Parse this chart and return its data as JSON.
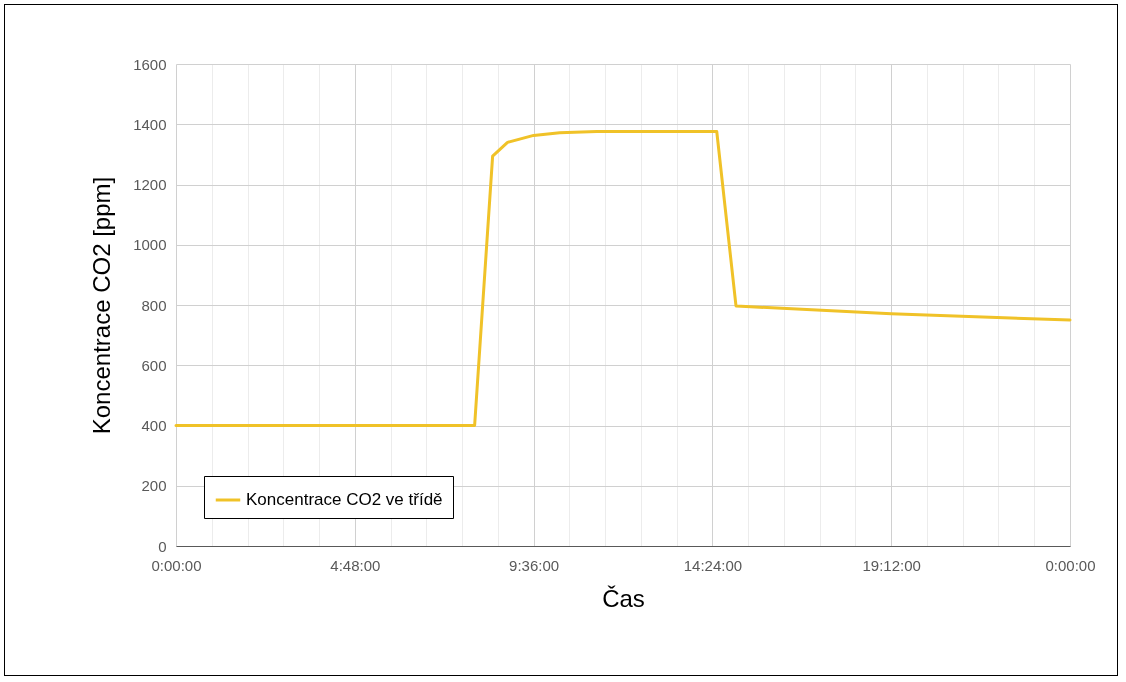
{
  "chart_data": {
    "type": "line",
    "xlabel": "Čas",
    "ylabel": "Koncentrace CO2 [ppm]",
    "x": [
      "--01-01T00:00",
      "--01-01T08:01",
      "--01-01T08:30",
      "--01-01T08:54",
      "--01-01T09:36",
      "--01-01T10:18",
      "--01-01T11:18",
      "--01-01T12:30",
      "--01-01T14:31",
      "--01-01T15:02",
      "--01-01T15:18",
      "--01-01T19:12",
      "--01-02T00:00"
    ],
    "series": [
      {
        "name": "Koncentrace CO2 ve třídě",
        "color": "#f0c228",
        "values": [
          400,
          400,
          1294,
          1340,
          1363,
          1372,
          1376,
          1376,
          1376,
          797,
          795,
          771,
          750
        ]
      }
    ],
    "xlim": [
      "--01-01T00:00",
      "--01-02T00:00"
    ],
    "xticks": [
      {
        "value": "--01-01T00:00:00",
        "label": "0:00:00"
      },
      {
        "value": "--01-01T00:57:36",
        "label": null
      },
      {
        "value": "--01-01T01:55:12",
        "label": null
      },
      {
        "value": "--01-01T02:52:48",
        "label": null
      },
      {
        "value": "--01-01T03:50:24",
        "label": null
      },
      {
        "value": "--01-01T04:48:00",
        "label": "4:48:00"
      },
      {
        "value": "--01-01T05:45:36",
        "label": null
      },
      {
        "value": "--01-01T06:43:12",
        "label": null
      },
      {
        "value": "--01-01T07:40:48",
        "label": null
      },
      {
        "value": "--01-01T08:38:24",
        "label": null
      },
      {
        "value": "--01-01T09:36:00",
        "label": "9:36:00"
      },
      {
        "value": "--01-01T10:33:36",
        "label": null
      },
      {
        "value": "--01-01T11:31:12",
        "label": null
      },
      {
        "value": "--01-01T12:28:48",
        "label": null
      },
      {
        "value": "--01-01T13:26:24",
        "label": null
      },
      {
        "value": "--01-01T14:24:00",
        "label": "14:24:00"
      },
      {
        "value": "--01-01T15:21:36",
        "label": null
      },
      {
        "value": "--01-01T16:19:12",
        "label": null
      },
      {
        "value": "--01-01T17:16:48",
        "label": null
      },
      {
        "value": "--01-01T18:14:24",
        "label": null
      },
      {
        "value": "--01-01T19:12:00",
        "label": "19:12:00"
      },
      {
        "value": "--01-01T20:09:36",
        "label": null
      },
      {
        "value": "--01-01T21:07:12",
        "label": null
      },
      {
        "value": "--01-01T22:04:48",
        "label": null
      },
      {
        "value": "--01-01T23:02:24",
        "label": null
      },
      {
        "value": "--01-02T00:00:00",
        "label": "0:00:00"
      }
    ],
    "ylim": [
      0,
      1600
    ],
    "yticks": [
      0,
      200,
      400,
      600,
      800,
      1000,
      1200,
      1400,
      1600
    ],
    "grid": true,
    "legend": "bottom left",
    "marker": "none",
    "line_style": "solid"
  }
}
